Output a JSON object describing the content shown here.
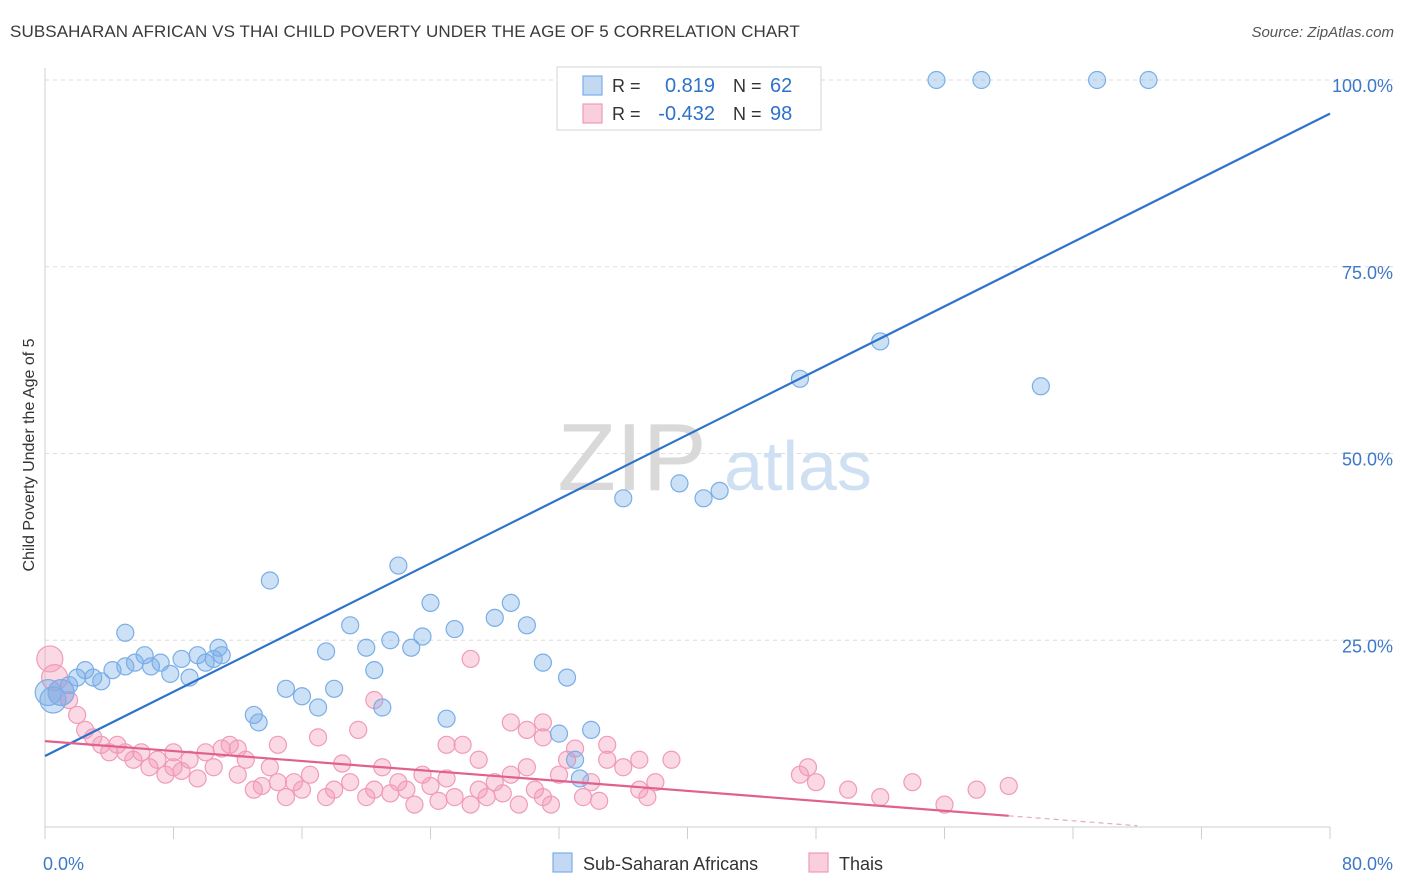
{
  "title": "SUBSAHARAN AFRICAN VS THAI CHILD POVERTY UNDER THE AGE OF 5 CORRELATION CHART",
  "source": "Source: ZipAtlas.com",
  "watermark": {
    "zip": "ZIP",
    "atlas": "atlas"
  },
  "colors": {
    "blue": "#7aaee8",
    "blue_line": "#2e72c9",
    "pink": "#f19ab9",
    "pink_line": "#e0608f",
    "tick_label": "#3d78c8",
    "grid": "#dddddd"
  },
  "legend": {
    "series": [
      {
        "r_label": "R =",
        "r_value": "0.819",
        "n_label": "N =",
        "n_value": "62"
      },
      {
        "r_label": "R =",
        "r_value": "-0.432",
        "n_label": "N =",
        "n_value": "98"
      }
    ]
  },
  "chart_data": {
    "type": "scatter",
    "xlabel": "",
    "ylabel": "Child Poverty Under the Age of 5",
    "xlim": [
      0,
      80
    ],
    "ylim": [
      0,
      100
    ],
    "x_tick_labels": [
      "0.0%",
      "80.0%"
    ],
    "y_ticks": [
      25,
      50,
      75,
      100
    ],
    "y_tick_labels": [
      "25.0%",
      "50.0%",
      "75.0%",
      "100.0%"
    ],
    "legend_position": "top-center",
    "series": [
      {
        "name": "Sub-Saharan Africans",
        "color": "#7aaee8",
        "r": 0.819,
        "n": 62,
        "trend": {
          "x": [
            0,
            80
          ],
          "y": [
            9.5,
            95.5
          ]
        },
        "points": [
          [
            0.2,
            18
          ],
          [
            0.5,
            17
          ],
          [
            1,
            18
          ],
          [
            1.5,
            19
          ],
          [
            2,
            20
          ],
          [
            2.5,
            21
          ],
          [
            3,
            20
          ],
          [
            3.5,
            19.5
          ],
          [
            4.2,
            21
          ],
          [
            5,
            21.5
          ],
          [
            5.6,
            22
          ],
          [
            6.2,
            23
          ],
          [
            6.6,
            21.5
          ],
          [
            7.2,
            22
          ],
          [
            7.8,
            20.5
          ],
          [
            8.5,
            22.5
          ],
          [
            9,
            20
          ],
          [
            9.5,
            23
          ],
          [
            10,
            22
          ],
          [
            10.5,
            22.5
          ],
          [
            10.8,
            24
          ],
          [
            11,
            23
          ],
          [
            13,
            15
          ],
          [
            13.3,
            14
          ],
          [
            14,
            33
          ],
          [
            15,
            18.5
          ],
          [
            16,
            17.5
          ],
          [
            17,
            16
          ],
          [
            17.5,
            23.5
          ],
          [
            18,
            18.5
          ],
          [
            19,
            27
          ],
          [
            20,
            24
          ],
          [
            20.5,
            21
          ],
          [
            21,
            16
          ],
          [
            21.5,
            25
          ],
          [
            22,
            35
          ],
          [
            22.8,
            24
          ],
          [
            23.5,
            25.5
          ],
          [
            24,
            30
          ],
          [
            25,
            14.5
          ],
          [
            25.5,
            26.5
          ],
          [
            28,
            28
          ],
          [
            29,
            30
          ],
          [
            30,
            27
          ],
          [
            31,
            22
          ],
          [
            32,
            12.5
          ],
          [
            32.5,
            20
          ],
          [
            33,
            9
          ],
          [
            33.3,
            6.5
          ],
          [
            34,
            13
          ],
          [
            36,
            44
          ],
          [
            39.5,
            46
          ],
          [
            41,
            44
          ],
          [
            42,
            45
          ],
          [
            47,
            60
          ],
          [
            52,
            65
          ],
          [
            62,
            59
          ],
          [
            55.5,
            100
          ],
          [
            58.3,
            100
          ],
          [
            65.5,
            100
          ],
          [
            68.7,
            100
          ],
          [
            5,
            26
          ]
        ]
      },
      {
        "name": "Thais",
        "color": "#f19ab9",
        "r": -0.432,
        "n": 98,
        "trend": {
          "x": [
            0,
            60
          ],
          "y": [
            11.5,
            1.5
          ]
        },
        "points": [
          [
            0.3,
            22.5
          ],
          [
            0.6,
            20
          ],
          [
            1,
            18
          ],
          [
            1.5,
            17
          ],
          [
            2,
            15
          ],
          [
            2.5,
            13
          ],
          [
            3,
            12
          ],
          [
            3.5,
            11
          ],
          [
            4,
            10
          ],
          [
            4.5,
            11
          ],
          [
            5,
            10
          ],
          [
            5.5,
            9
          ],
          [
            6,
            10
          ],
          [
            6.5,
            8
          ],
          [
            7,
            9
          ],
          [
            7.5,
            7
          ],
          [
            8,
            8
          ],
          [
            8.5,
            7.5
          ],
          [
            9,
            9
          ],
          [
            9.5,
            6.5
          ],
          [
            10,
            10
          ],
          [
            10.5,
            8
          ],
          [
            11,
            10.5
          ],
          [
            11.5,
            11
          ],
          [
            12,
            7
          ],
          [
            12.5,
            9
          ],
          [
            13,
            5
          ],
          [
            13.5,
            5.5
          ],
          [
            14,
            8
          ],
          [
            14.5,
            6
          ],
          [
            15,
            4
          ],
          [
            15.5,
            6
          ],
          [
            16,
            5
          ],
          [
            16.5,
            7
          ],
          [
            17,
            12
          ],
          [
            17.5,
            4
          ],
          [
            18,
            5
          ],
          [
            18.5,
            8.5
          ],
          [
            19,
            6
          ],
          [
            19.5,
            13
          ],
          [
            20,
            4
          ],
          [
            20.5,
            5
          ],
          [
            21,
            8
          ],
          [
            21.5,
            4.5
          ],
          [
            22,
            6
          ],
          [
            22.5,
            5
          ],
          [
            23,
            3
          ],
          [
            23.5,
            7
          ],
          [
            24,
            5.5
          ],
          [
            24.5,
            3.5
          ],
          [
            25,
            6.5
          ],
          [
            25.5,
            4
          ],
          [
            26,
            11
          ],
          [
            26.5,
            3
          ],
          [
            27,
            5
          ],
          [
            27.5,
            4
          ],
          [
            28,
            6
          ],
          [
            28.5,
            4.5
          ],
          [
            29,
            7
          ],
          [
            29.5,
            3
          ],
          [
            30,
            13
          ],
          [
            30.5,
            5
          ],
          [
            31,
            4
          ],
          [
            31.5,
            3
          ],
          [
            32,
            7
          ],
          [
            32.5,
            9
          ],
          [
            33,
            10.5
          ],
          [
            33.5,
            4
          ],
          [
            34,
            6
          ],
          [
            34.5,
            3.5
          ],
          [
            35,
            9
          ],
          [
            36,
            8
          ],
          [
            37,
            5
          ],
          [
            37.5,
            4
          ],
          [
            38,
            6
          ],
          [
            39,
            9
          ],
          [
            47,
            7
          ],
          [
            47.5,
            8
          ],
          [
            48,
            6
          ],
          [
            50,
            5
          ],
          [
            52,
            4
          ],
          [
            54,
            6
          ],
          [
            56,
            3
          ],
          [
            58,
            5
          ],
          [
            60,
            5.5
          ],
          [
            26.5,
            22.5
          ],
          [
            29,
            14
          ],
          [
            31,
            14
          ],
          [
            20.5,
            17
          ],
          [
            8,
            10
          ],
          [
            12,
            10.5
          ],
          [
            14.5,
            11
          ],
          [
            25,
            11
          ],
          [
            27,
            9
          ],
          [
            30,
            8
          ],
          [
            31,
            12
          ],
          [
            35,
            11
          ],
          [
            37,
            9
          ]
        ]
      }
    ]
  }
}
